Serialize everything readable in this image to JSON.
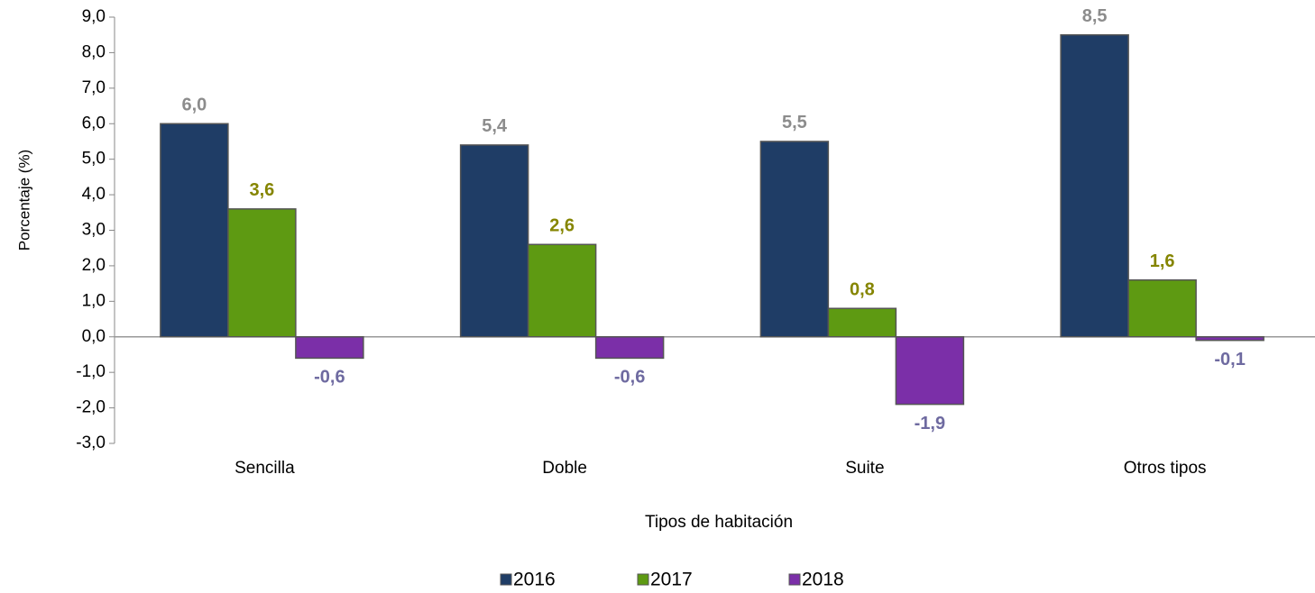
{
  "chart_data": {
    "type": "bar",
    "y_axis_label": "Porcentaje (%)",
    "x_axis_label": "Tipos de habitación",
    "categories": [
      "Sencilla",
      "Doble",
      "Suite",
      "Otros tipos"
    ],
    "series": [
      {
        "name": "2016",
        "color": "#1f3d66",
        "label_color": "#8c8c8c",
        "values": [
          6.0,
          5.4,
          5.5,
          8.5
        ],
        "value_labels": [
          "6,0",
          "5,4",
          "5,5",
          "8,5"
        ]
      },
      {
        "name": "2017",
        "color": "#5e9a12",
        "label_color": "#858500",
        "values": [
          3.6,
          2.6,
          0.8,
          1.6
        ],
        "value_labels": [
          "3,6",
          "2,6",
          "0,8",
          "1,6"
        ]
      },
      {
        "name": "2018",
        "color": "#7b2fa8",
        "label_color": "#6e6aa0",
        "values": [
          -0.6,
          -0.6,
          -1.9,
          -0.1
        ],
        "value_labels": [
          "-0,6",
          "-0,6",
          "-1,9",
          "-0,1"
        ]
      }
    ],
    "ylim": [
      -3,
      9
    ],
    "yticks": [
      {
        "value": -3,
        "label": "-3,0"
      },
      {
        "value": -2,
        "label": "-2,0"
      },
      {
        "value": -1,
        "label": "-1,0"
      },
      {
        "value": 0,
        "label": "0,0"
      },
      {
        "value": 1,
        "label": "1,0"
      },
      {
        "value": 2,
        "label": "2,0"
      },
      {
        "value": 3,
        "label": "3,0"
      },
      {
        "value": 4,
        "label": "4,0"
      },
      {
        "value": 5,
        "label": "5,0"
      },
      {
        "value": 6,
        "label": "6,0"
      },
      {
        "value": 7,
        "label": "7,0"
      },
      {
        "value": 8,
        "label": "8,0"
      },
      {
        "value": 9,
        "label": "9,0"
      }
    ],
    "legend": "bottom"
  }
}
